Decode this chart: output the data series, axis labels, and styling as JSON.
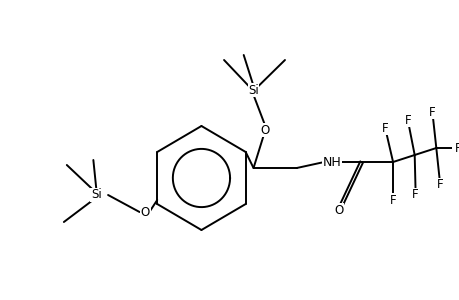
{
  "bg_color": "#ffffff",
  "line_color": "#000000",
  "line_width": 1.4,
  "font_size": 8.5,
  "figsize": [
    4.6,
    3.0
  ],
  "dpi": 100,
  "xlim": [
    0,
    460
  ],
  "ylim": [
    0,
    300
  ]
}
